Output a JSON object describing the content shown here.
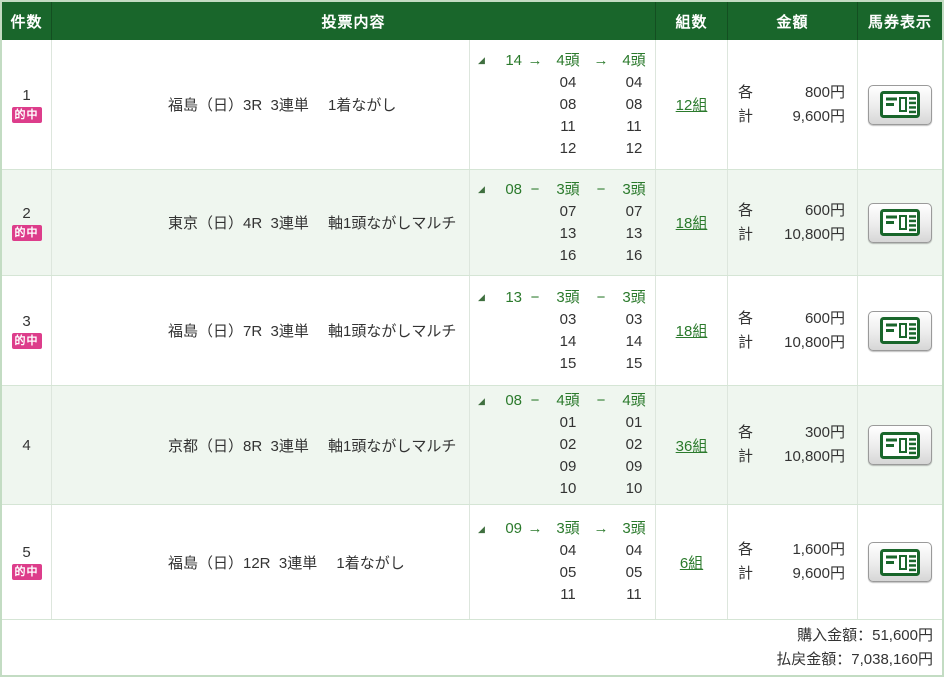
{
  "colors": {
    "header_bg": "#19662b",
    "green_text": "#2b7a2c",
    "badge_bg": "#dd3d8b",
    "row_alt_bg": "#eff6ef",
    "border_outer": "#c3dcc3",
    "row_border": "#d5e5d5",
    "text": "#333333",
    "marker": "#3f6f3f"
  },
  "header": {
    "columns": [
      "件数",
      "投票内容",
      "組数",
      "金額",
      "馬券表示"
    ]
  },
  "badge_label": "的中",
  "marker_glyph": "◢",
  "ticket_icon_name": "betting-ticket-icon",
  "rows": [
    {
      "no": "1",
      "hit": true,
      "description": "福島（日）3R  3連単　 1着ながし",
      "axis": "14",
      "sep": "→",
      "head1": "4頭",
      "head2": "4頭",
      "col1": [
        "04",
        "08",
        "11",
        "12"
      ],
      "col2": [
        "04",
        "08",
        "11",
        "12"
      ],
      "combinations": "12組",
      "each_label": "各",
      "each_amount": "800円",
      "total_label": "計",
      "total_amount": "9,600円"
    },
    {
      "no": "2",
      "hit": true,
      "description": "東京（日）4R  3連単　 軸1頭ながしマルチ",
      "axis": "08",
      "sep": "−",
      "head1": "3頭",
      "head2": "3頭",
      "col1": [
        "07",
        "13",
        "16"
      ],
      "col2": [
        "07",
        "13",
        "16"
      ],
      "combinations": "18組",
      "each_label": "各",
      "each_amount": "600円",
      "total_label": "計",
      "total_amount": "10,800円"
    },
    {
      "no": "3",
      "hit": true,
      "description": "福島（日）7R  3連単　 軸1頭ながしマルチ",
      "axis": "13",
      "sep": "−",
      "head1": "3頭",
      "head2": "3頭",
      "col1": [
        "03",
        "14",
        "15"
      ],
      "col2": [
        "03",
        "14",
        "15"
      ],
      "combinations": "18組",
      "each_label": "各",
      "each_amount": "600円",
      "total_label": "計",
      "total_amount": "10,800円"
    },
    {
      "no": "4",
      "hit": false,
      "description": "京都（日）8R  3連単　 軸1頭ながしマルチ",
      "axis": "08",
      "sep": "−",
      "head1": "4頭",
      "head2": "4頭",
      "col1": [
        "01",
        "02",
        "09",
        "10"
      ],
      "col2": [
        "01",
        "02",
        "09",
        "10"
      ],
      "combinations": "36組",
      "each_label": "各",
      "each_amount": "300円",
      "total_label": "計",
      "total_amount": "10,800円"
    },
    {
      "no": "5",
      "hit": true,
      "description": "福島（日）12R  3連単　 1着ながし",
      "axis": "09",
      "sep": "→",
      "head1": "3頭",
      "head2": "3頭",
      "col1": [
        "04",
        "05",
        "11"
      ],
      "col2": [
        "04",
        "05",
        "11"
      ],
      "combinations": "6組",
      "each_label": "各",
      "each_amount": "1,600円",
      "total_label": "計",
      "total_amount": "9,600円"
    }
  ],
  "footer": {
    "purchase_label": "購入金額：",
    "purchase_value": "51,600円",
    "refund_label": "払戻金額：",
    "refund_value": "7,038,160円"
  }
}
